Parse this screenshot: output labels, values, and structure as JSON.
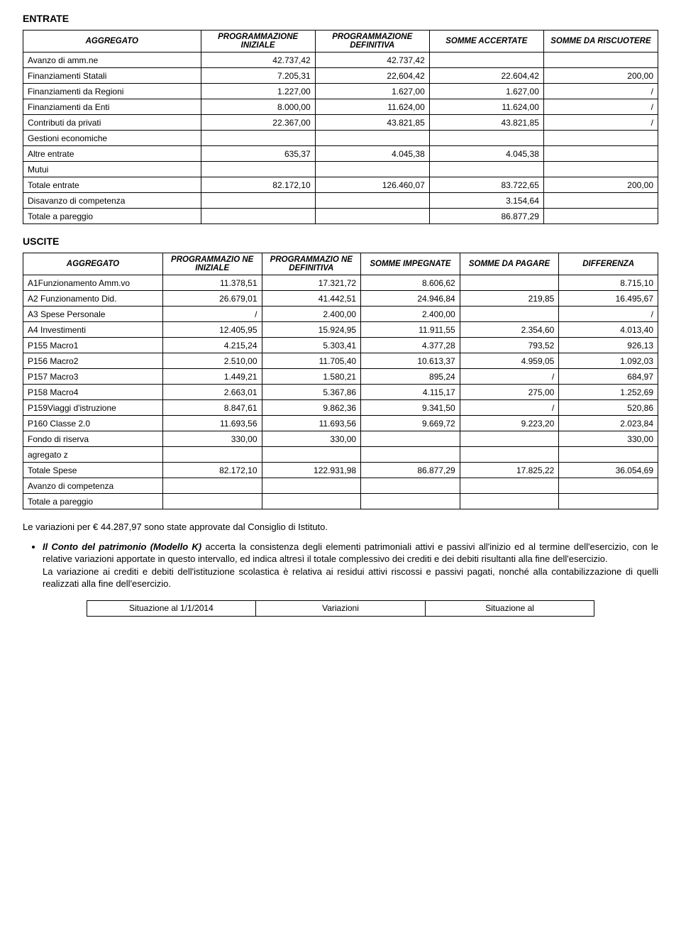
{
  "entrate": {
    "title": "ENTRATE",
    "headers": [
      "AGGREGATO",
      "PROGRAMMAZIONE INIZIALE",
      "PROGRAMMAZIONE DEFINITIVA",
      "SOMME ACCERTATE",
      "SOMME DA RISCUOTERE"
    ],
    "rows": [
      {
        "label": "Avanzo di amm.ne",
        "c2": "42.737,42",
        "c3": "42.737,42",
        "c4": "",
        "c5": ""
      },
      {
        "label": "Finanziamenti Statali",
        "c2": "7.205,31",
        "c3": "22,604,42",
        "c4": "22.604,42",
        "c5": "200,00"
      },
      {
        "label": "Finanziamenti da Regioni",
        "c2": "1.227,00",
        "c3": "1.627,00",
        "c4": "1.627,00",
        "c5": "/"
      },
      {
        "label": "Finanziamenti da Enti",
        "c2": "8.000,00",
        "c3": "11.624,00",
        "c4": "11.624,00",
        "c5": "/"
      },
      {
        "label": "Contributi da privati",
        "c2": "22.367,00",
        "c3": "43.821,85",
        "c4": "43.821,85",
        "c5": "/"
      },
      {
        "label": "Gestioni economiche",
        "c2": "",
        "c3": "",
        "c4": "",
        "c5": ""
      },
      {
        "label": "Altre entrate",
        "c2": "635,37",
        "c3": "4.045,38",
        "c4": "4.045,38",
        "c5": ""
      },
      {
        "label": "Mutui",
        "c2": "",
        "c3": "",
        "c4": "",
        "c5": ""
      },
      {
        "label": "Totale entrate",
        "c2": "82.172,10",
        "c3": "126.460,07",
        "c4": "83.722,65",
        "c5": "200,00"
      },
      {
        "label": "Disavanzo di competenza",
        "c2": "",
        "c3": "",
        "c4": "3.154,64",
        "c5": ""
      },
      {
        "label": "Totale a pareggio",
        "c2": "",
        "c3": "",
        "c4": "86.877,29",
        "c5": ""
      }
    ]
  },
  "uscite": {
    "title": "USCITE",
    "headers": [
      "AGGREGATO",
      "PROGRAMMAZIO NE INIZIALE",
      "PROGRAMMAZIO NE DEFINITIVA",
      "SOMME IMPEGNATE",
      "SOMME DA PAGARE",
      "DIFFERENZA"
    ],
    "rows": [
      {
        "label": "A1Funzionamento Amm.vo",
        "c2": "11.378,51",
        "c3": "17.321,72",
        "c4": "8.606,62",
        "c5": "",
        "c6": "8.715,10"
      },
      {
        "label": "A2 Funzionamento Did.",
        "c2": "26.679,01",
        "c3": "41.442,51",
        "c4": "24.946,84",
        "c5": "219,85",
        "c6": "16.495,67"
      },
      {
        "label": "A3 Spese Personale",
        "c2": "/",
        "c3": "2.400,00",
        "c4": "2.400,00",
        "c5": "",
        "c6": "/"
      },
      {
        "label": "A4 Investimenti",
        "c2": "12.405,95",
        "c3": "15.924,95",
        "c4": "11.911,55",
        "c5": "2.354,60",
        "c6": "4.013,40"
      },
      {
        "label": "P155 Macro1",
        "c2": "4.215,24",
        "c3": "5.303,41",
        "c4": "4.377,28",
        "c5": "793,52",
        "c6": "926,13"
      },
      {
        "label": "P156 Macro2",
        "c2": "2.510,00",
        "c3": "11.705,40",
        "c4": "10.613,37",
        "c5": "4.959,05",
        "c6": "1.092,03"
      },
      {
        "label": "P157 Macro3",
        "c2": "1.449,21",
        "c3": "1.580,21",
        "c4": "895,24",
        "c5": "/",
        "c6": "684,97"
      },
      {
        "label": "P158 Macro4",
        "c2": "2.663,01",
        "c3": "5.367,86",
        "c4": "4.115,17",
        "c5": "275,00",
        "c6": "1.252,69"
      },
      {
        "label": "P159Viaggi d'istruzione",
        "c2": "8.847,61",
        "c3": "9.862,36",
        "c4": "9.341,50",
        "c5": "/",
        "c6": "520,86"
      },
      {
        "label": "P160 Classe 2.0",
        "c2": "11.693,56",
        "c3": "11.693,56",
        "c4": "9.669,72",
        "c5": "9.223,20",
        "c6": "2.023,84"
      },
      {
        "label": "Fondo di riserva",
        "c2": "330,00",
        "c3": "330,00",
        "c4": "",
        "c5": "",
        "c6": "330,00"
      },
      {
        "label": "agregato z",
        "c2": "",
        "c3": "",
        "c4": "",
        "c5": "",
        "c6": ""
      },
      {
        "label": "Totale Spese",
        "c2": "82.172,10",
        "c3": "122.931,98",
        "c4": "86.877,29",
        "c5": "17.825,22",
        "c6": "36.054,69"
      },
      {
        "label": "Avanzo di competenza",
        "c2": "",
        "c3": "",
        "c4": "",
        "c5": "",
        "c6": ""
      },
      {
        "label": "Totale a pareggio",
        "c2": "",
        "c3": "",
        "c4": "",
        "c5": "",
        "c6": ""
      }
    ]
  },
  "text": {
    "variazioni": "Le variazioni per € 44.287,97 sono state approvate dal Consiglio di Istituto.",
    "bullet_lead": "Il Conto del patrimonio (Modello K)",
    "bullet_body1": " accerta la consistenza degli elementi patrimoniali attivi e passivi all'inizio ed al termine dell'esercizio, con le relative variazioni apportate in questo intervallo, ed indica altresì il totale complessivo dei crediti e dei debiti risultanti alla fine dell'esercizio.",
    "bullet_body2": "La variazione ai crediti e debiti dell'istituzione scolastica è relativa ai residui attivi riscossi e passivi pagati, nonché alla contabilizzazione di quelli realizzati alla fine dell'esercizio."
  },
  "situazione": {
    "cells": [
      "Situazione al 1/1/2014",
      "Variazioni",
      "Situazione al"
    ]
  }
}
